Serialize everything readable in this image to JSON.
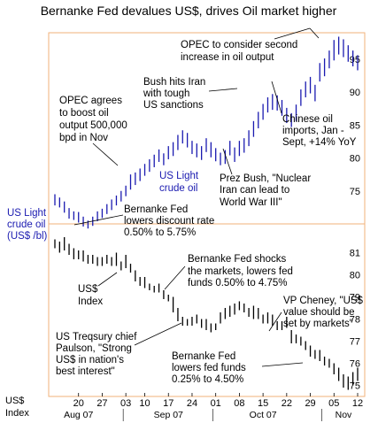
{
  "chart_data": [
    {
      "type": "ohlc",
      "title": "Bernanke Fed devalues US$, drives Oil market higher",
      "ylabel": "US Light crude oil (US$ /bl)",
      "series_label": "US Light crude oil",
      "ylim": [
        70,
        99
      ],
      "yticks": [
        75,
        80,
        85,
        90,
        95
      ],
      "color": "#1a1ab0",
      "bars": [
        {
          "date": "Aug 13",
          "high": 74.5,
          "low": 72.8
        },
        {
          "date": "Aug 14",
          "high": 74.0,
          "low": 72.5
        },
        {
          "date": "Aug 15",
          "high": 73.4,
          "low": 71.7
        },
        {
          "date": "Aug 16",
          "high": 72.4,
          "low": 70.8
        },
        {
          "date": "Aug 17",
          "high": 71.9,
          "low": 70.6
        },
        {
          "date": "Aug 20",
          "high": 71.8,
          "low": 70.2
        },
        {
          "date": "Aug 21",
          "high": 71.1,
          "low": 69.6
        },
        {
          "date": "Aug 22",
          "high": 70.5,
          "low": 69.3
        },
        {
          "date": "Aug 23",
          "high": 71.1,
          "low": 69.7
        },
        {
          "date": "Aug 24",
          "high": 71.9,
          "low": 70.4
        },
        {
          "date": "Aug 27",
          "high": 72.3,
          "low": 70.9
        },
        {
          "date": "Aug 28",
          "high": 73.0,
          "low": 71.5
        },
        {
          "date": "Aug 29",
          "high": 73.7,
          "low": 72.1
        },
        {
          "date": "Aug 30",
          "high": 74.3,
          "low": 72.8
        },
        {
          "date": "Aug 31",
          "high": 75.0,
          "low": 73.4
        },
        {
          "date": "Sep 04",
          "high": 75.8,
          "low": 74.2
        },
        {
          "date": "Sep 05",
          "high": 77.5,
          "low": 75.2
        },
        {
          "date": "Sep 06",
          "high": 77.8,
          "low": 75.9
        },
        {
          "date": "Sep 07",
          "high": 78.4,
          "low": 76.5
        },
        {
          "date": "Sep 10",
          "high": 79.1,
          "low": 77.3
        },
        {
          "date": "Sep 11",
          "high": 79.8,
          "low": 77.9
        },
        {
          "date": "Sep 12",
          "high": 80.5,
          "low": 78.6
        },
        {
          "date": "Sep 13",
          "high": 81.3,
          "low": 79.4
        },
        {
          "date": "Sep 14",
          "high": 80.7,
          "low": 78.9
        },
        {
          "date": "Sep 17",
          "high": 81.8,
          "low": 79.8
        },
        {
          "date": "Sep 18",
          "high": 82.4,
          "low": 80.3
        },
        {
          "date": "Sep 19",
          "high": 83.5,
          "low": 81.2
        },
        {
          "date": "Sep 20",
          "high": 84.2,
          "low": 82.2
        },
        {
          "date": "Sep 21",
          "high": 83.8,
          "low": 81.6
        },
        {
          "date": "Sep 24",
          "high": 82.6,
          "low": 80.6
        },
        {
          "date": "Sep 25",
          "high": 82.2,
          "low": 80.1
        },
        {
          "date": "Sep 26",
          "high": 81.8,
          "low": 79.7
        },
        {
          "date": "Sep 27",
          "high": 83.0,
          "low": 80.9
        },
        {
          "date": "Sep 28",
          "high": 82.4,
          "low": 80.1
        },
        {
          "date": "Oct 01",
          "high": 81.5,
          "low": 79.5
        },
        {
          "date": "Oct 02",
          "high": 80.8,
          "low": 78.9
        },
        {
          "date": "Oct 03",
          "high": 81.2,
          "low": 79.1
        },
        {
          "date": "Oct 04",
          "high": 82.6,
          "low": 80.4
        },
        {
          "date": "Oct 05",
          "high": 81.6,
          "low": 79.4
        },
        {
          "date": "Oct 08",
          "high": 82.6,
          "low": 80.3
        },
        {
          "date": "Oct 09",
          "high": 83.0,
          "low": 80.8
        },
        {
          "date": "Oct 10",
          "high": 84.2,
          "low": 81.8
        },
        {
          "date": "Oct 11",
          "high": 85.6,
          "low": 83.2
        },
        {
          "date": "Oct 12",
          "high": 87.0,
          "low": 84.5
        },
        {
          "date": "Oct 15",
          "high": 88.2,
          "low": 85.8
        },
        {
          "date": "Oct 16",
          "high": 89.2,
          "low": 86.9
        },
        {
          "date": "Oct 17",
          "high": 89.7,
          "low": 87.3
        },
        {
          "date": "Oct 18",
          "high": 89.5,
          "low": 87.2
        },
        {
          "date": "Oct 19",
          "high": 88.8,
          "low": 86.4
        },
        {
          "date": "Oct 22",
          "high": 87.6,
          "low": 85.3
        },
        {
          "date": "Oct 23",
          "high": 86.8,
          "low": 84.7
        },
        {
          "date": "Oct 24",
          "high": 88.1,
          "low": 85.6
        },
        {
          "date": "Oct 25",
          "high": 90.4,
          "low": 87.9
        },
        {
          "date": "Oct 26",
          "high": 91.6,
          "low": 89.2
        },
        {
          "date": "Oct 29",
          "high": 92.3,
          "low": 89.8
        },
        {
          "date": "Oct 30",
          "high": 91.1,
          "low": 88.6
        },
        {
          "date": "Oct 31",
          "high": 94.4,
          "low": 91.6
        },
        {
          "date": "Nov 01",
          "high": 95.1,
          "low": 92.4
        },
        {
          "date": "Nov 02",
          "high": 96.3,
          "low": 93.6
        },
        {
          "date": "Nov 05",
          "high": 97.9,
          "low": 94.8
        },
        {
          "date": "Nov 06",
          "high": 98.4,
          "low": 95.7
        },
        {
          "date": "Nov 07",
          "high": 98.0,
          "low": 95.3
        },
        {
          "date": "Nov 08",
          "high": 97.1,
          "low": 94.6
        },
        {
          "date": "Nov 09",
          "high": 96.3,
          "low": 93.9
        },
        {
          "date": "Nov 12",
          "high": 95.6,
          "low": 93.3
        }
      ]
    },
    {
      "type": "ohlc",
      "ylabel": "US$ Index",
      "series_label": "US$ Index",
      "ylim": [
        74.5,
        82.3
      ],
      "yticks": [
        75,
        76,
        77,
        78,
        79,
        80,
        81
      ],
      "color": "#000000",
      "bars": [
        {
          "date": "Aug 13",
          "high": 81.6,
          "low": 81.2
        },
        {
          "date": "Aug 14",
          "high": 81.5,
          "low": 81.0
        },
        {
          "date": "Aug 15",
          "high": 81.7,
          "low": 81.1
        },
        {
          "date": "Aug 16",
          "high": 81.4,
          "low": 80.9
        },
        {
          "date": "Aug 17",
          "high": 81.2,
          "low": 80.7
        },
        {
          "date": "Aug 20",
          "high": 81.1,
          "low": 80.7
        },
        {
          "date": "Aug 21",
          "high": 81.1,
          "low": 80.6
        },
        {
          "date": "Aug 22",
          "high": 80.9,
          "low": 80.5
        },
        {
          "date": "Aug 23",
          "high": 80.9,
          "low": 80.5
        },
        {
          "date": "Aug 24",
          "high": 80.8,
          "low": 80.4
        },
        {
          "date": "Aug 27",
          "high": 80.8,
          "low": 80.4
        },
        {
          "date": "Aug 28",
          "high": 80.9,
          "low": 80.5
        },
        {
          "date": "Aug 29",
          "high": 80.8,
          "low": 80.4
        },
        {
          "date": "Aug 30",
          "high": 81.0,
          "low": 80.4
        },
        {
          "date": "Aug 31",
          "high": 80.6,
          "low": 80.2
        },
        {
          "date": "Sep 04",
          "high": 80.9,
          "low": 80.3
        },
        {
          "date": "Sep 05",
          "high": 80.5,
          "low": 80.1
        },
        {
          "date": "Sep 06",
          "high": 80.2,
          "low": 79.7
        },
        {
          "date": "Sep 07",
          "high": 79.9,
          "low": 79.5
        },
        {
          "date": "Sep 10",
          "high": 79.9,
          "low": 79.4
        },
        {
          "date": "Sep 11",
          "high": 79.6,
          "low": 79.3
        },
        {
          "date": "Sep 12",
          "high": 79.5,
          "low": 79.2
        },
        {
          "date": "Sep 13",
          "high": 79.6,
          "low": 79.2
        },
        {
          "date": "Sep 14",
          "high": 79.3,
          "low": 78.9
        },
        {
          "date": "Sep 17",
          "high": 79.1,
          "low": 78.8
        },
        {
          "date": "Sep 18",
          "high": 79.0,
          "low": 78.3
        },
        {
          "date": "Sep 19",
          "high": 78.5,
          "low": 77.9
        },
        {
          "date": "Sep 20",
          "high": 78.1,
          "low": 77.7
        },
        {
          "date": "Sep 21",
          "high": 78.0,
          "low": 77.7
        },
        {
          "date": "Sep 24",
          "high": 78.1,
          "low": 77.7
        },
        {
          "date": "Sep 25",
          "high": 78.2,
          "low": 77.8
        },
        {
          "date": "Sep 26",
          "high": 78.0,
          "low": 77.6
        },
        {
          "date": "Sep 27",
          "high": 78.0,
          "low": 77.5
        },
        {
          "date": "Sep 28",
          "high": 77.8,
          "low": 77.4
        },
        {
          "date": "Oct 01",
          "high": 77.8,
          "low": 77.5
        },
        {
          "date": "Oct 02",
          "high": 78.3,
          "low": 77.8
        },
        {
          "date": "Oct 03",
          "high": 78.5,
          "low": 78.0
        },
        {
          "date": "Oct 04",
          "high": 78.6,
          "low": 78.1
        },
        {
          "date": "Oct 05",
          "high": 78.7,
          "low": 78.2
        },
        {
          "date": "Oct 08",
          "high": 78.8,
          "low": 78.4
        },
        {
          "date": "Oct 09",
          "high": 78.7,
          "low": 78.3
        },
        {
          "date": "Oct 10",
          "high": 78.5,
          "low": 78.1
        },
        {
          "date": "Oct 11",
          "high": 78.6,
          "low": 78.0
        },
        {
          "date": "Oct 12",
          "high": 78.5,
          "low": 78.0
        },
        {
          "date": "Oct 15",
          "high": 78.2,
          "low": 77.8
        },
        {
          "date": "Oct 16",
          "high": 78.3,
          "low": 77.8
        },
        {
          "date": "Oct 17",
          "high": 78.2,
          "low": 77.7
        },
        {
          "date": "Oct 18",
          "high": 77.9,
          "low": 77.5
        },
        {
          "date": "Oct 19",
          "high": 77.9,
          "low": 77.5
        },
        {
          "date": "Oct 22",
          "high": 78.1,
          "low": 77.6
        },
        {
          "date": "Oct 23",
          "high": 77.5,
          "low": 76.9
        },
        {
          "date": "Oct 24",
          "high": 77.3,
          "low": 76.9
        },
        {
          "date": "Oct 25",
          "high": 77.2,
          "low": 76.8
        },
        {
          "date": "Oct 26",
          "high": 77.0,
          "low": 76.6
        },
        {
          "date": "Oct 29",
          "high": 76.8,
          "low": 76.3
        },
        {
          "date": "Oct 30",
          "high": 76.6,
          "low": 76.2
        },
        {
          "date": "Oct 31",
          "high": 76.6,
          "low": 76.1
        },
        {
          "date": "Nov 01",
          "high": 76.3,
          "low": 75.9
        },
        {
          "date": "Nov 02",
          "high": 76.2,
          "low": 75.8
        },
        {
          "date": "Nov 05",
          "high": 76.0,
          "low": 75.5
        },
        {
          "date": "Nov 06",
          "high": 75.8,
          "low": 75.2
        },
        {
          "date": "Nov 07",
          "high": 75.5,
          "low": 74.9
        },
        {
          "date": "Nov 08",
          "high": 75.4,
          "low": 74.8
        },
        {
          "date": "Nov 09",
          "high": 75.6,
          "low": 75.0
        },
        {
          "date": "Nov 12",
          "high": 75.8,
          "low": 75.2
        }
      ]
    }
  ],
  "x_axis": {
    "day_ticks": [
      {
        "label": "20",
        "date": "Aug 20"
      },
      {
        "label": "27",
        "date": "Aug 27"
      },
      {
        "label": "03",
        "date": "Sep 04"
      },
      {
        "label": "10",
        "date": "Sep 10"
      },
      {
        "label": "17",
        "date": "Sep 17"
      },
      {
        "label": "24",
        "date": "Sep 24"
      },
      {
        "label": "01",
        "date": "Oct 01"
      },
      {
        "label": "08",
        "date": "Oct 08"
      },
      {
        "label": "15",
        "date": "Oct 15"
      },
      {
        "label": "22",
        "date": "Oct 22"
      },
      {
        "label": "29",
        "date": "Oct 29"
      },
      {
        "label": "05",
        "date": "Nov 05"
      },
      {
        "label": "12",
        "date": "Nov 12"
      }
    ],
    "months": [
      {
        "label": "Aug 07",
        "date": "Aug 20"
      },
      {
        "label": "Sep 07",
        "date": "Sep 17"
      },
      {
        "label": "Oct 07",
        "date": "Oct 15"
      },
      {
        "label": "Nov",
        "date": "Nov 07"
      }
    ]
  },
  "labels": {
    "title": "Bernanke Fed devalues US$, drives Oil market higher",
    "oil_axis_title": [
      "US Light",
      "crude oil",
      "(US$ /bl)"
    ],
    "usd_axis_title": [
      "US$",
      "Index"
    ],
    "oil_series": [
      "US Light",
      "crude oil"
    ],
    "usd_series": [
      "US$",
      "Index"
    ]
  },
  "annotations": {
    "opec_second": [
      "OPEC to consider second",
      "increase in oil output"
    ],
    "bush_iran": [
      "Bush hits Iran",
      "with tough",
      "US sanctions"
    ],
    "opec_boost": [
      "OPEC agrees",
      "to boost oil",
      "output 500,000",
      "bpd in Nov"
    ],
    "chinese_oil": [
      "Chinese oil",
      "imports, Jan -",
      "Sept, +14% YoY"
    ],
    "prez_bush": [
      "Prez Bush, \"Nuclear",
      "Iran can lead to",
      "World War III\""
    ],
    "fed_discount": [
      "Bernanke Fed",
      "lowers discount rate",
      "0.50% to 5.75%"
    ],
    "fed_shocks": [
      "Bernanke Fed shocks",
      "the markets, lowers fed",
      "funds 0.50% to 4.75%"
    ],
    "cheney": [
      "VP Cheney, \"US$",
      "value should be",
      "set by markets\""
    ],
    "paulson": [
      "US Treqsury chief",
      "Paulson, \"Strong",
      "US$ in nation's",
      "best interest\""
    ],
    "fed_funds": [
      "Bernanke Fed",
      "lowers fed funds",
      "0.25% to 4.50%"
    ]
  },
  "colors": {
    "frame": "#f2b27a",
    "oil": "#1a1ab0",
    "usd": "#000000"
  }
}
